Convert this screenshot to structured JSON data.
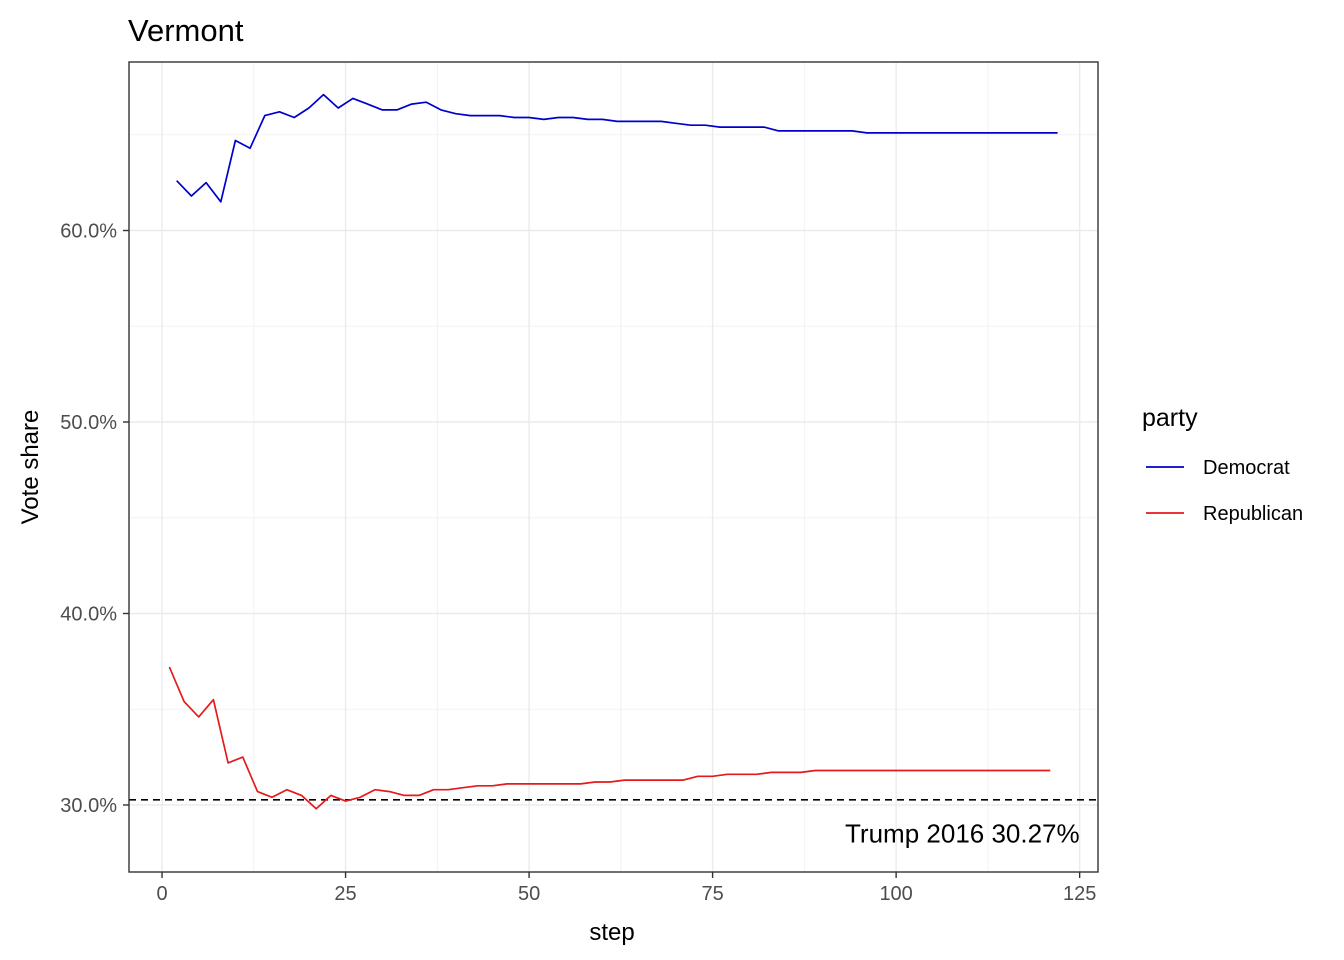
{
  "chart_data": {
    "type": "line",
    "title": "Vermont",
    "xlabel": "step",
    "ylabel": "Vote share",
    "xlim": [
      -4.5,
      127.5
    ],
    "ylim": [
      26.5,
      68.8
    ],
    "x_ticks": [
      0,
      25,
      50,
      75,
      100,
      125
    ],
    "y_ticks": [
      {
        "value": 30,
        "label": "30.0%"
      },
      {
        "value": 40,
        "label": "40.0%"
      },
      {
        "value": 50,
        "label": "50.0%"
      },
      {
        "value": 60,
        "label": "60.0%"
      }
    ],
    "grid": true,
    "legend": {
      "title": "party",
      "position": "right"
    },
    "series": [
      {
        "name": "Democrat",
        "color": "#0000cc",
        "x": [
          2,
          4,
          6,
          8,
          10,
          12,
          14,
          16,
          18,
          20,
          22,
          24,
          26,
          28,
          30,
          32,
          34,
          36,
          38,
          40,
          42,
          44,
          46,
          48,
          50,
          52,
          54,
          56,
          58,
          60,
          62,
          64,
          66,
          68,
          70,
          72,
          74,
          76,
          78,
          80,
          82,
          84,
          86,
          88,
          90,
          92,
          94,
          96,
          98,
          100,
          102,
          104,
          106,
          108,
          110,
          112,
          114,
          116,
          118,
          120,
          122
        ],
        "y": [
          62.6,
          61.8,
          62.5,
          61.5,
          64.7,
          64.3,
          66.0,
          66.2,
          65.9,
          66.4,
          67.1,
          66.4,
          66.9,
          66.6,
          66.3,
          66.3,
          66.6,
          66.7,
          66.3,
          66.1,
          66.0,
          66.0,
          66.0,
          65.9,
          65.9,
          65.8,
          65.9,
          65.9,
          65.8,
          65.8,
          65.7,
          65.7,
          65.7,
          65.7,
          65.6,
          65.5,
          65.5,
          65.4,
          65.4,
          65.4,
          65.4,
          65.2,
          65.2,
          65.2,
          65.2,
          65.2,
          65.2,
          65.1,
          65.1,
          65.1,
          65.1,
          65.1,
          65.1,
          65.1,
          65.1,
          65.1,
          65.1,
          65.1,
          65.1,
          65.1,
          65.1
        ]
      },
      {
        "name": "Republican",
        "color": "#e41a1c",
        "x": [
          1,
          3,
          5,
          7,
          9,
          11,
          13,
          15,
          17,
          19,
          21,
          23,
          25,
          27,
          29,
          31,
          33,
          35,
          37,
          39,
          41,
          43,
          45,
          47,
          49,
          51,
          53,
          55,
          57,
          59,
          61,
          63,
          65,
          67,
          69,
          71,
          73,
          75,
          77,
          79,
          81,
          83,
          85,
          87,
          89,
          91,
          93,
          95,
          97,
          99,
          101,
          103,
          105,
          107,
          109,
          111,
          113,
          115,
          117,
          119,
          121
        ],
        "y": [
          37.2,
          35.4,
          34.6,
          35.5,
          32.2,
          32.5,
          30.7,
          30.4,
          30.8,
          30.5,
          29.8,
          30.5,
          30.2,
          30.4,
          30.8,
          30.7,
          30.5,
          30.5,
          30.8,
          30.8,
          30.9,
          31.0,
          31.0,
          31.1,
          31.1,
          31.1,
          31.1,
          31.1,
          31.1,
          31.2,
          31.2,
          31.3,
          31.3,
          31.3,
          31.3,
          31.3,
          31.5,
          31.5,
          31.6,
          31.6,
          31.6,
          31.7,
          31.7,
          31.7,
          31.8,
          31.8,
          31.8,
          31.8,
          31.8,
          31.8,
          31.8,
          31.8,
          31.8,
          31.8,
          31.8,
          31.8,
          31.8,
          31.8,
          31.8,
          31.8,
          31.8
        ]
      }
    ],
    "reference_line": {
      "value": 30.27,
      "style": "dashed",
      "color": "#000000"
    },
    "annotation": {
      "text": "Trump 2016 30.27%",
      "x": 125,
      "y": 28.5
    }
  }
}
